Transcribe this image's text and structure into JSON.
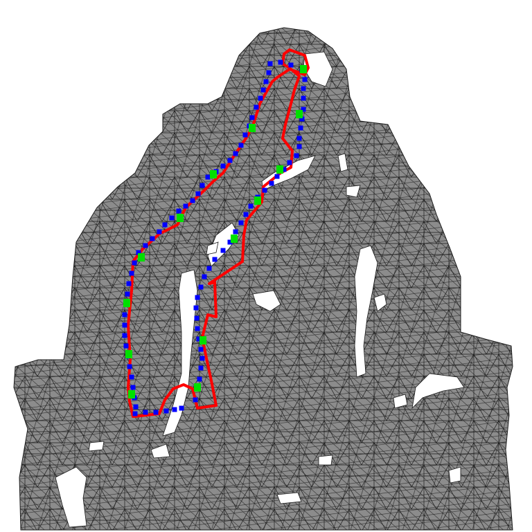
{
  "colors": {
    "background": "#ffffff",
    "mesh_fill": "#8c8c8c",
    "mesh_edge": "#1a1a1a",
    "hole_fill": "#ffffff",
    "red_curve": "#ff0000",
    "blue_markers": "#0000ff",
    "green_markers": "#00e000"
  },
  "legend": []
}
